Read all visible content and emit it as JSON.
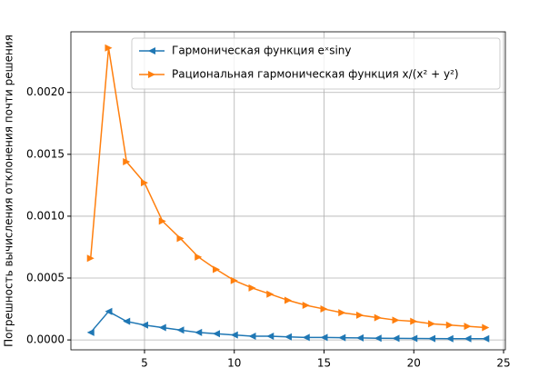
{
  "chart_data": {
    "type": "line",
    "y_label": "Погрешность вычисления отклонения почти решения",
    "x": [
      2,
      3,
      4,
      5,
      6,
      7,
      8,
      9,
      10,
      11,
      12,
      13,
      14,
      15,
      16,
      17,
      18,
      19,
      20,
      21,
      22,
      23,
      24
    ],
    "series": [
      {
        "name": "Гармоническая функция eˣsiny",
        "color": "#1f77b4",
        "marker": "left",
        "values": [
          6e-05,
          0.00023,
          0.00015,
          0.00012,
          0.0001,
          8e-05,
          6e-05,
          5e-05,
          4e-05,
          3e-05,
          3e-05,
          2.5e-05,
          2e-05,
          2e-05,
          1.8e-05,
          1.6e-05,
          1.4e-05,
          1.3e-05,
          1.2e-05,
          1.1e-05,
          1e-05,
          1e-05,
          1e-05
        ]
      },
      {
        "name": "Рациональная гармоническая функция x/(x² + y²)",
        "color": "#ff7f0e",
        "marker": "right",
        "values": [
          0.00066,
          0.00236,
          0.00144,
          0.00127,
          0.00096,
          0.00082,
          0.00067,
          0.00057,
          0.00048,
          0.00042,
          0.00037,
          0.00032,
          0.00028,
          0.00025,
          0.00022,
          0.0002,
          0.00018,
          0.00016,
          0.00015,
          0.00013,
          0.00012,
          0.00011,
          0.0001
        ]
      }
    ],
    "xlim": [
      0.9,
      25.1
    ],
    "xticks": [
      5,
      10,
      15,
      20,
      25
    ],
    "ylim": [
      -8e-05,
      0.00249
    ],
    "yticks": [
      {
        "value": 0,
        "label": "0.0000"
      },
      {
        "value": 0.0005,
        "label": "0.0005"
      },
      {
        "value": 0.001,
        "label": "0.0010"
      },
      {
        "value": 0.0015,
        "label": "0.0015"
      },
      {
        "value": 0.002,
        "label": "0.0020"
      }
    ],
    "grid": true,
    "legend": "upper right"
  }
}
